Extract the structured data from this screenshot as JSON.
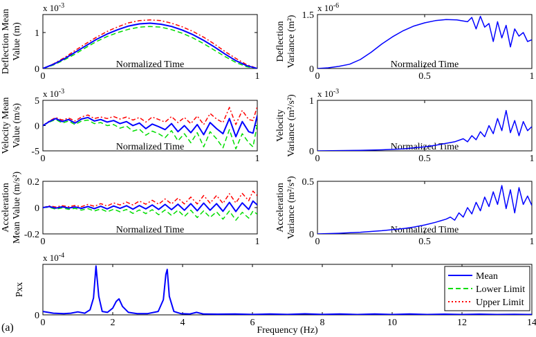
{
  "figure_label": "(a)",
  "colors": {
    "mean": "#0000ff",
    "lower": "#00dd00",
    "upper": "#ff0000"
  },
  "chart_data": [
    {
      "id": "deflection_mean",
      "type": "line",
      "xlabel": "Normalized Time",
      "ylabel": [
        "Deflection Mean",
        "Value (m)"
      ],
      "exponent_base": "x 10",
      "exponent": "-3",
      "xlim": [
        0,
        1
      ],
      "ylim": [
        0,
        0.0015
      ],
      "xticks": [
        {
          "v": 0,
          "l": "0"
        },
        {
          "v": 1,
          "l": "1"
        }
      ],
      "yticks": [
        {
          "v": 0,
          "l": "0"
        },
        {
          "v": 0.001,
          "l": "1"
        }
      ],
      "x": [
        0,
        0.05,
        0.1,
        0.15,
        0.2,
        0.25,
        0.3,
        0.35,
        0.4,
        0.45,
        0.5,
        0.55,
        0.6,
        0.65,
        0.7,
        0.75,
        0.8,
        0.85,
        0.9,
        0.95,
        1
      ],
      "series": [
        {
          "name": "Mean",
          "style": "solid",
          "colorKey": "mean",
          "width": 2,
          "values": [
            0,
            0.00012,
            0.00027,
            0.00045,
            0.00063,
            0.00081,
            0.00096,
            0.00108,
            0.00118,
            0.00124,
            0.00126,
            0.00123,
            0.00117,
            0.00107,
            0.00094,
            0.00078,
            0.0006,
            0.0004,
            0.00022,
            8e-05,
            0
          ]
        },
        {
          "name": "Lower Limit",
          "style": "dash",
          "colorKey": "lower",
          "width": 1.5,
          "values": [
            0,
            0.0001,
            0.00024,
            0.0004,
            0.00058,
            0.00075,
            0.00089,
            0.001,
            0.00109,
            0.00115,
            0.00117,
            0.00115,
            0.00108,
            0.00098,
            0.00085,
            0.00069,
            0.00051,
            0.00033,
            0.00017,
            5e-05,
            0
          ]
        },
        {
          "name": "Upper Limit",
          "style": "dashdot",
          "colorKey": "upper",
          "width": 1.5,
          "values": [
            0,
            0.00013,
            0.0003,
            0.0005,
            0.00069,
            0.00087,
            0.00103,
            0.00116,
            0.00127,
            0.00133,
            0.00135,
            0.00133,
            0.00126,
            0.00116,
            0.00103,
            0.00087,
            0.00068,
            0.00047,
            0.00028,
            0.00011,
            0
          ]
        }
      ]
    },
    {
      "id": "deflection_variance",
      "type": "line",
      "xlabel": "Normalized Time",
      "ylabel": [
        "Deflection",
        "Variance (m²)"
      ],
      "exponent_base": "x 10",
      "exponent": "-6",
      "xlim": [
        0,
        1
      ],
      "ylim": [
        0,
        1.5e-06
      ],
      "xticks": [
        {
          "v": 0,
          "l": "0"
        },
        {
          "v": 0.5,
          "l": "0.5"
        },
        {
          "v": 1,
          "l": "1"
        }
      ],
      "yticks": [
        {
          "v": 0,
          "l": "0"
        },
        {
          "v": 1.5e-06,
          "l": "1.5"
        }
      ],
      "x": [
        0,
        0.05,
        0.1,
        0.15,
        0.2,
        0.25,
        0.3,
        0.35,
        0.4,
        0.45,
        0.5,
        0.55,
        0.6,
        0.65,
        0.7,
        0.72,
        0.74,
        0.76,
        0.78,
        0.8,
        0.82,
        0.84,
        0.86,
        0.88,
        0.9,
        0.92,
        0.94,
        0.96,
        0.98,
        1
      ],
      "series": [
        {
          "name": "Mean",
          "style": "solid",
          "colorKey": "mean",
          "width": 1.5,
          "values": [
            0,
            2e-08,
            6e-08,
            1.2e-07,
            2.5e-07,
            4.5e-07,
            6.8e-07,
            8.8e-07,
            1.05e-06,
            1.18e-06,
            1.27e-06,
            1.33e-06,
            1.36e-06,
            1.35e-06,
            1.3e-06,
            1.42e-06,
            1.1e-06,
            1.45e-06,
            1.15e-06,
            1.25e-06,
            7.5e-07,
            1.3e-06,
            8.5e-07,
            1.2e-06,
            6e-07,
            1.1e-06,
            9e-07,
            1e-06,
            7.5e-07,
            8e-07
          ]
        }
      ]
    },
    {
      "id": "velocity_mean",
      "type": "line",
      "xlabel": "Normalized Time",
      "ylabel": [
        "Velocity Mean",
        "Value (m/s)"
      ],
      "exponent_base": "x 10",
      "exponent": "-3",
      "xlim": [
        0,
        1
      ],
      "ylim": [
        -0.005,
        0.005
      ],
      "xticks": [
        {
          "v": 0,
          "l": "0"
        },
        {
          "v": 1,
          "l": "1"
        }
      ],
      "yticks": [
        {
          "v": -0.005,
          "l": "-5"
        },
        {
          "v": 0,
          "l": "0"
        },
        {
          "v": 0.005,
          "l": "5"
        }
      ],
      "x": [
        0,
        0.03,
        0.06,
        0.09,
        0.12,
        0.15,
        0.18,
        0.21,
        0.24,
        0.27,
        0.3,
        0.33,
        0.36,
        0.39,
        0.42,
        0.45,
        0.48,
        0.51,
        0.54,
        0.57,
        0.6,
        0.63,
        0.66,
        0.69,
        0.72,
        0.75,
        0.78,
        0.81,
        0.84,
        0.87,
        0.9,
        0.93,
        0.96,
        0.98,
        1
      ],
      "series": [
        {
          "name": "Mean",
          "style": "solid",
          "colorKey": "mean",
          "width": 2,
          "values": [
            0,
            0.0008,
            0.0014,
            0.0008,
            0.0012,
            0.0005,
            0.0013,
            0.0016,
            0.0009,
            0.0012,
            0.0007,
            0.001,
            0.0004,
            0.0008,
            0.0,
            0.0005,
            -0.0006,
            0.0003,
            -0.0002,
            -0.0008,
            0.0004,
            -0.0012,
            0.0,
            -0.0014,
            0.0002,
            -0.0018,
            0.0006,
            -0.0006,
            -0.0016,
            0.0014,
            -0.0022,
            0.0008,
            -0.0012,
            -0.0015,
            0.002
          ]
        },
        {
          "name": "Lower Limit",
          "style": "dash",
          "colorKey": "lower",
          "width": 1.5,
          "values": [
            0,
            0.0007,
            0.0012,
            0.0005,
            0.0009,
            0.0002,
            0.0009,
            0.0011,
            0.0004,
            0.0006,
            0.0,
            0.0002,
            -0.0005,
            -0.0001,
            -0.0011,
            -0.0007,
            -0.0019,
            -0.0011,
            -0.0016,
            -0.0024,
            -0.001,
            -0.003,
            -0.0016,
            -0.0034,
            -0.0014,
            -0.0042,
            -0.0012,
            -0.0026,
            -0.0044,
            -0.0008,
            -0.0046,
            -0.0016,
            -0.0034,
            -0.0042,
            0.0002
          ]
        },
        {
          "name": "Upper Limit",
          "style": "dashdot",
          "colorKey": "upper",
          "width": 1.5,
          "values": [
            0,
            0.0009,
            0.0016,
            0.0011,
            0.0015,
            0.0009,
            0.0017,
            0.0021,
            0.0014,
            0.0017,
            0.0014,
            0.0018,
            0.0013,
            0.0017,
            0.0011,
            0.0016,
            0.0007,
            0.0017,
            0.0012,
            0.0007,
            0.0018,
            0.0006,
            0.0016,
            0.0004,
            0.0019,
            0.0002,
            0.0024,
            0.0013,
            0.0006,
            0.0036,
            0.0002,
            0.003,
            0.0012,
            0.001,
            0.0038
          ]
        }
      ]
    },
    {
      "id": "velocity_variance",
      "type": "line",
      "xlabel": "Normalized Time",
      "ylabel": [
        "Velocity",
        "Variance (m²/s²)"
      ],
      "exponent_base": "x 10",
      "exponent": "-3",
      "xlim": [
        0,
        1
      ],
      "ylim": [
        0,
        0.001
      ],
      "xticks": [
        {
          "v": 0,
          "l": "0"
        },
        {
          "v": 0.5,
          "l": "0.5"
        },
        {
          "v": 1,
          "l": "1"
        }
      ],
      "yticks": [
        {
          "v": 0,
          "l": "0"
        },
        {
          "v": 0.001,
          "l": "1"
        }
      ],
      "x": [
        0,
        0.1,
        0.2,
        0.3,
        0.4,
        0.45,
        0.5,
        0.55,
        0.6,
        0.64,
        0.68,
        0.7,
        0.72,
        0.74,
        0.76,
        0.78,
        0.8,
        0.82,
        0.84,
        0.86,
        0.88,
        0.9,
        0.92,
        0.94,
        0.96,
        0.98,
        1
      ],
      "series": [
        {
          "name": "Mean",
          "style": "solid",
          "colorKey": "mean",
          "width": 1.5,
          "values": [
            0,
            5e-06,
            1e-05,
            2e-05,
            4e-05,
            6e-05,
            8e-05,
            0.00011,
            0.00015,
            0.00018,
            0.00024,
            0.00018,
            0.0003,
            0.00022,
            0.00038,
            0.00028,
            0.0005,
            0.00034,
            0.00064,
            0.0004,
            0.0008,
            0.00036,
            0.0006,
            0.0003,
            0.00058,
            0.0004,
            0.00048
          ]
        }
      ]
    },
    {
      "id": "acceleration_mean",
      "type": "line",
      "xlabel": "Normalized Time",
      "ylabel": [
        "Acceleration",
        "Mean Value (m/s²)"
      ],
      "xlim": [
        0,
        1
      ],
      "ylim": [
        -0.2,
        0.2
      ],
      "xticks": [
        {
          "v": 0,
          "l": "0"
        },
        {
          "v": 1,
          "l": "1"
        }
      ],
      "yticks": [
        {
          "v": -0.2,
          "l": "-0.2"
        },
        {
          "v": 0,
          "l": "0"
        },
        {
          "v": 0.2,
          "l": "0.2"
        }
      ],
      "x": [
        0,
        0.03,
        0.06,
        0.09,
        0.12,
        0.15,
        0.18,
        0.21,
        0.24,
        0.27,
        0.3,
        0.33,
        0.36,
        0.39,
        0.42,
        0.45,
        0.48,
        0.51,
        0.54,
        0.57,
        0.6,
        0.63,
        0.66,
        0.69,
        0.72,
        0.75,
        0.78,
        0.81,
        0.84,
        0.87,
        0.9,
        0.93,
        0.96,
        0.98,
        1
      ],
      "series": [
        {
          "name": "Mean",
          "style": "solid",
          "colorKey": "mean",
          "width": 2,
          "values": [
            0,
            0.008,
            -0.004,
            0.006,
            -0.003,
            0.005,
            -0.006,
            0.008,
            -0.008,
            0.01,
            -0.01,
            0.012,
            -0.006,
            0.014,
            -0.012,
            0.016,
            -0.01,
            0.02,
            -0.014,
            0.024,
            -0.016,
            0.026,
            -0.02,
            0.03,
            -0.024,
            0.034,
            -0.02,
            0.03,
            -0.028,
            0.04,
            -0.03,
            0.036,
            -0.014,
            0.05,
            0.02
          ]
        },
        {
          "name": "Lower Limit",
          "style": "dash",
          "colorKey": "lower",
          "width": 1.5,
          "values": [
            0,
            0.003,
            -0.012,
            -0.002,
            -0.013,
            -0.006,
            -0.019,
            -0.008,
            -0.026,
            -0.01,
            -0.032,
            -0.012,
            -0.032,
            -0.014,
            -0.044,
            -0.018,
            -0.046,
            -0.016,
            -0.054,
            -0.018,
            -0.06,
            -0.02,
            -0.068,
            -0.02,
            -0.076,
            -0.024,
            -0.074,
            -0.032,
            -0.088,
            -0.026,
            -0.096,
            -0.036,
            -0.08,
            -0.026,
            -0.05
          ]
        },
        {
          "name": "Upper Limit",
          "style": "dashdot",
          "colorKey": "upper",
          "width": 1.5,
          "values": [
            0,
            0.013,
            0.004,
            0.014,
            0.007,
            0.016,
            0.007,
            0.024,
            0.01,
            0.03,
            0.012,
            0.036,
            0.02,
            0.042,
            0.02,
            0.05,
            0.026,
            0.056,
            0.026,
            0.066,
            0.028,
            0.072,
            0.028,
            0.08,
            0.028,
            0.092,
            0.034,
            0.092,
            0.032,
            0.106,
            0.036,
            0.108,
            0.052,
            0.126,
            0.09
          ]
        }
      ]
    },
    {
      "id": "acceleration_variance",
      "type": "line",
      "xlabel": "Normalized Time",
      "ylabel": [
        "Acceleration",
        "Variance (m²/s⁴)"
      ],
      "xlim": [
        0,
        1
      ],
      "ylim": [
        0,
        0.5
      ],
      "xticks": [
        {
          "v": 0,
          "l": "0"
        },
        {
          "v": 0.5,
          "l": "0.5"
        },
        {
          "v": 1,
          "l": "1"
        }
      ],
      "yticks": [
        {
          "v": 0,
          "l": "0"
        },
        {
          "v": 0.5,
          "l": "0.5"
        }
      ],
      "x": [
        0,
        0.1,
        0.2,
        0.3,
        0.4,
        0.45,
        0.5,
        0.55,
        0.6,
        0.62,
        0.64,
        0.66,
        0.68,
        0.7,
        0.72,
        0.74,
        0.76,
        0.78,
        0.8,
        0.82,
        0.84,
        0.86,
        0.88,
        0.9,
        0.92,
        0.94,
        0.96,
        0.98,
        1
      ],
      "series": [
        {
          "name": "Mean",
          "style": "solid",
          "colorKey": "mean",
          "width": 1.5,
          "values": [
            0,
            0.006,
            0.016,
            0.03,
            0.05,
            0.065,
            0.085,
            0.11,
            0.14,
            0.16,
            0.13,
            0.2,
            0.16,
            0.25,
            0.19,
            0.3,
            0.22,
            0.35,
            0.26,
            0.4,
            0.28,
            0.46,
            0.24,
            0.42,
            0.2,
            0.44,
            0.28,
            0.36,
            0.27
          ]
        }
      ]
    },
    {
      "id": "pxx",
      "type": "line",
      "xlabel": "Frequency (Hz)",
      "ylabel": [
        "Pxx"
      ],
      "exponent_base": "x 10",
      "exponent": "-4",
      "xlim": [
        0,
        14
      ],
      "ylim": [
        0,
        0.0006
      ],
      "xticks": [
        {
          "v": 0,
          "l": "0"
        },
        {
          "v": 2,
          "l": "2"
        },
        {
          "v": 4,
          "l": "4"
        },
        {
          "v": 6,
          "l": "6"
        },
        {
          "v": 8,
          "l": "8"
        },
        {
          "v": 10,
          "l": "10"
        },
        {
          "v": 12,
          "l": "12"
        },
        {
          "v": 14,
          "l": "14"
        }
      ],
      "yticks": [
        {
          "v": 0,
          "l": "0"
        }
      ],
      "legend": {
        "position": "top-right",
        "entries": [
          {
            "label": "Mean",
            "style": "solid",
            "colorKey": "mean"
          },
          {
            "label": "Lower Limit",
            "style": "dash",
            "colorKey": "lower"
          },
          {
            "label": "Upper Limit",
            "style": "dot",
            "colorKey": "upper"
          }
        ]
      },
      "x": [
        0,
        0.3,
        0.6,
        0.8,
        1.0,
        1.2,
        1.35,
        1.45,
        1.52,
        1.6,
        1.7,
        1.85,
        2.0,
        2.1,
        2.18,
        2.28,
        2.45,
        2.7,
        3.0,
        3.3,
        3.45,
        3.52,
        3.56,
        3.62,
        3.75,
        3.95,
        4.2,
        4.4,
        4.6,
        5.0,
        5.5,
        6.0,
        6.5,
        7.0,
        7.5,
        8.0,
        8.5,
        9.0,
        9.5,
        10.0,
        10.5,
        11.0,
        11.5,
        12.0,
        12.5,
        13.0,
        13.5,
        14.0
      ],
      "series": [
        {
          "name": "Mean",
          "style": "solid",
          "colorKey": "mean",
          "width": 2,
          "values": [
            4e-05,
            2e-05,
            1.5e-05,
            2e-05,
            3.5e-05,
            2e-05,
            6e-05,
            0.0002,
            0.00058,
            0.00022,
            4e-05,
            3e-05,
            8e-05,
            0.00016,
            0.00019,
            0.0001,
            3e-05,
            1.5e-05,
            1.5e-05,
            4e-05,
            0.00018,
            0.00048,
            0.00054,
            0.00022,
            4e-05,
            1.5e-05,
            1e-05,
            3e-05,
            1e-05,
            8e-06,
            1e-05,
            5e-06,
            1e-05,
            5e-06,
            1.2e-05,
            5e-06,
            1e-05,
            4e-06,
            1e-05,
            4e-06,
            1e-05,
            4e-06,
            8e-06,
            4e-06,
            8e-06,
            4e-06,
            6e-06,
            4e-06
          ]
        }
      ]
    }
  ]
}
